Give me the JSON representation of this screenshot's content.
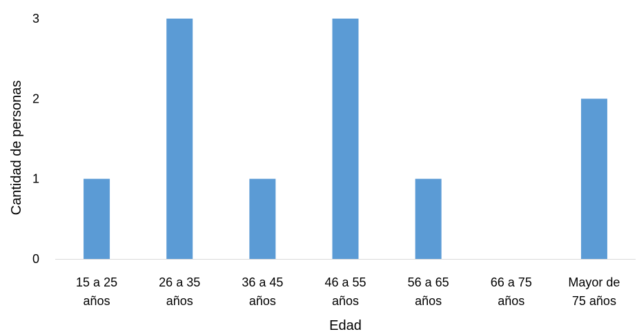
{
  "chart_data": {
    "type": "bar",
    "title": "",
    "xlabel": "Edad",
    "ylabel": "Cantidad de personas",
    "categories": [
      [
        "15 a 25",
        "años"
      ],
      [
        "26 a 35",
        "años"
      ],
      [
        "36 a 45",
        "años"
      ],
      [
        "46 a 55",
        "años"
      ],
      [
        "56 a 65",
        "años"
      ],
      [
        "66 a 75",
        "años"
      ],
      [
        "Mayor de",
        "75 años"
      ]
    ],
    "values": [
      1,
      3,
      1,
      3,
      1,
      0,
      2
    ],
    "ylim": [
      0,
      3
    ],
    "yticks": [
      0,
      1,
      2,
      3
    ],
    "grid": false,
    "legend": "none",
    "bar_color": "#5b9bd5",
    "axis_color": "#d9d9d9"
  }
}
